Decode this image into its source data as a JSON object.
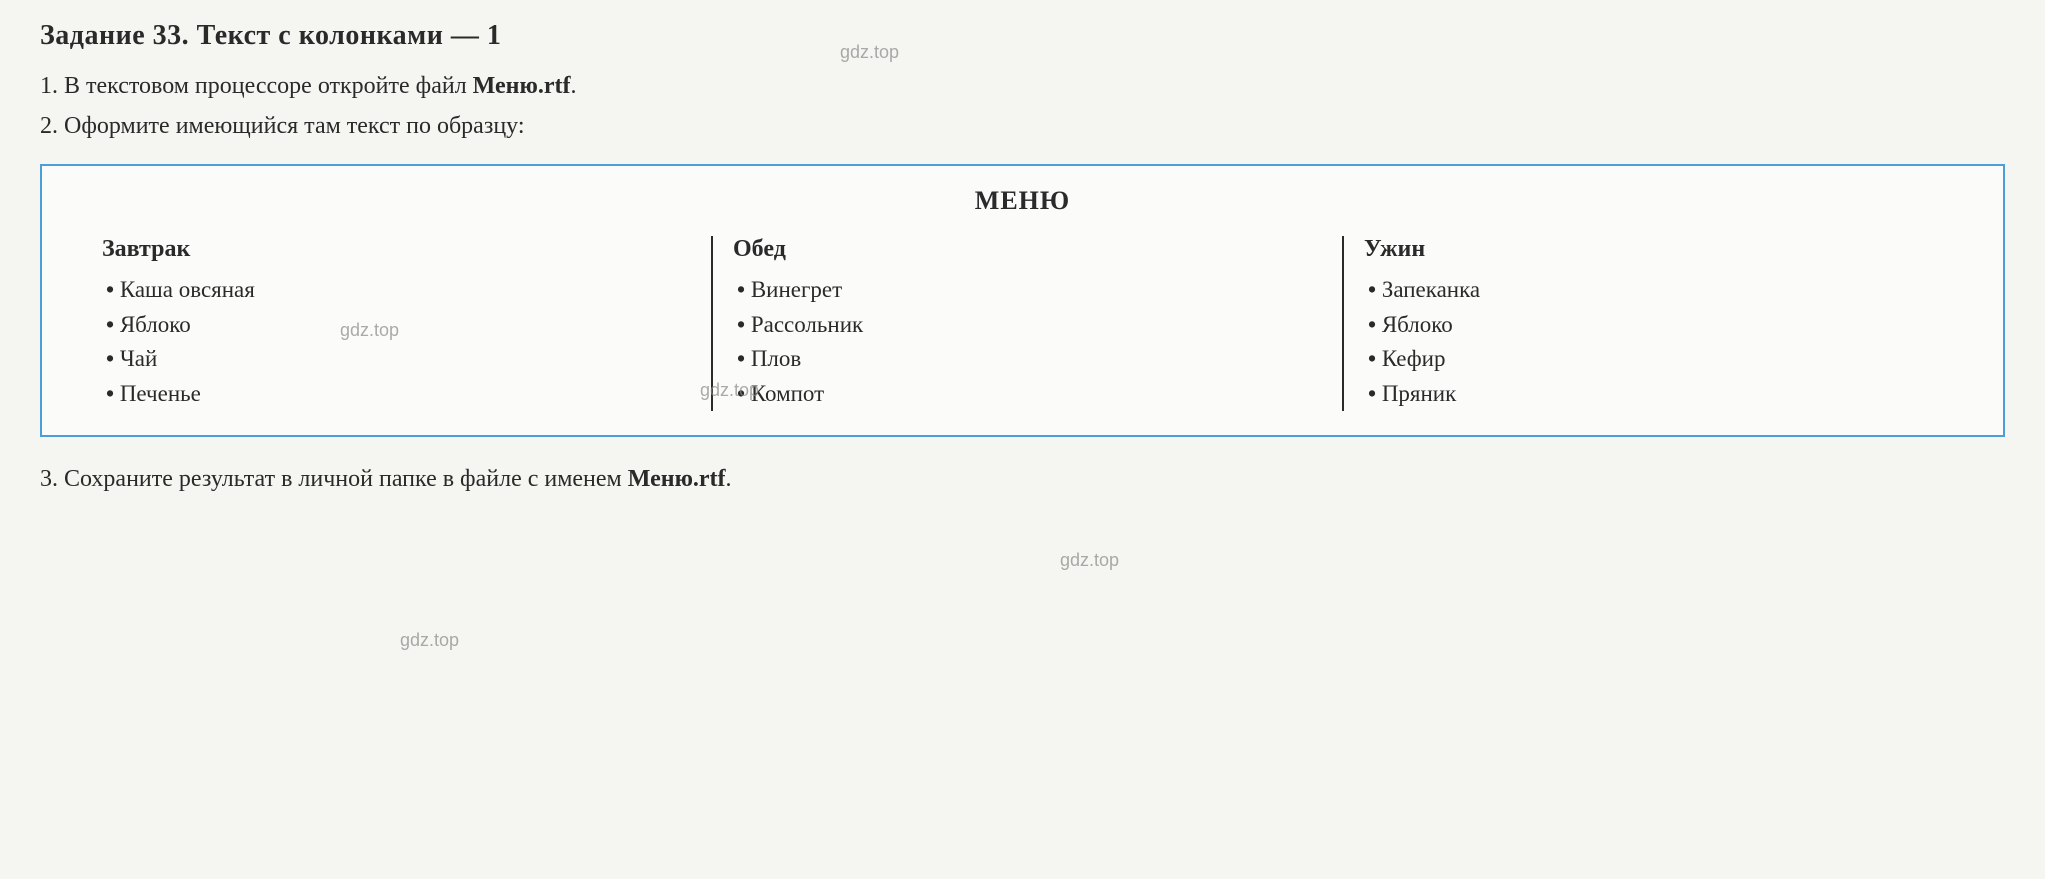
{
  "task": {
    "number": "Задание 33.",
    "title": "Текст с колонками — 1"
  },
  "instructions": [
    {
      "num": "1.",
      "prefix": "В текстовом процессоре откройте файл ",
      "filename": "Меню.rtf",
      "suffix": "."
    },
    {
      "num": "2.",
      "prefix": "Оформите имеющийся там текст по образцу:",
      "filename": "",
      "suffix": ""
    },
    {
      "num": "3.",
      "prefix": "Сохраните результат в личной папке в файле с именем ",
      "filename": "Меню.rtf",
      "suffix": "."
    }
  ],
  "menu": {
    "title": "МЕНЮ",
    "columns": [
      {
        "heading": "Завтрак",
        "items": [
          "Каша овсяная",
          "Яблоко",
          "Чай",
          "Печенье"
        ]
      },
      {
        "heading": "Обед",
        "items": [
          "Винегрет",
          "Рассольник",
          "Плов",
          "Компот"
        ]
      },
      {
        "heading": "Ужин",
        "items": [
          "Запеканка",
          "Яблоко",
          "Кефир",
          "Пряник"
        ]
      }
    ]
  },
  "watermark_text": "gdz.top",
  "colors": {
    "border": "#4a9fd8",
    "text": "#2a2a2a",
    "background": "#f5f5f2",
    "box_background": "#fbfbf9",
    "watermark": "#888888"
  },
  "typography": {
    "header_fontsize": 28,
    "instruction_fontsize": 24,
    "menu_title_fontsize": 26,
    "meal_name_fontsize": 24,
    "meal_item_fontsize": 23,
    "watermark_fontsize": 18,
    "font_family": "Georgia, Times New Roman, serif"
  }
}
